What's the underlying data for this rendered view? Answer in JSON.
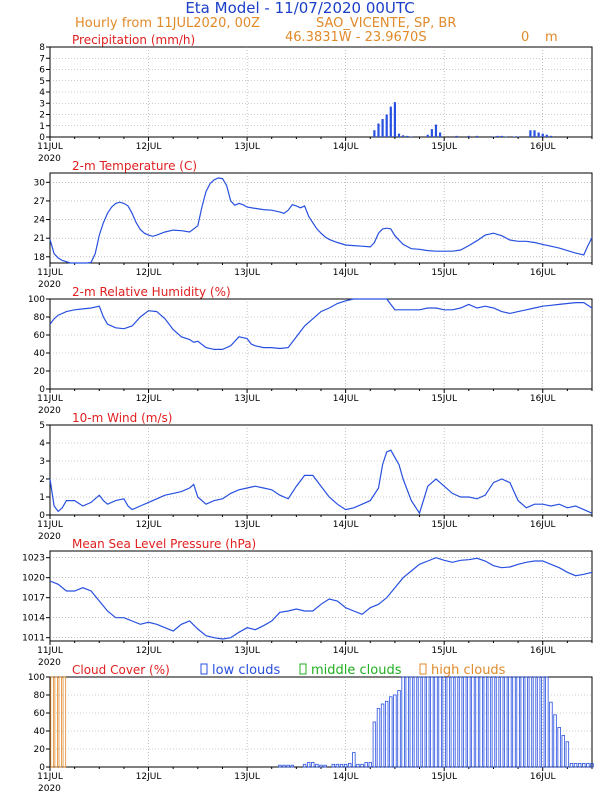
{
  "header": {
    "title": "Eta Model - 11/07/2020 00UTC",
    "subtitle": "Hourly from 11JUL2020, 00Z",
    "location": "SAO_VICENTE, SP, BR",
    "coords": "46.3831W - 23.9670S",
    "elevation": "0",
    "elevation_unit": "m"
  },
  "colors": {
    "title": "#1a3ec8",
    "subtitle": "#e08a2a",
    "panel_title": "#e02020",
    "series": "#2850e0",
    "low": "#2850e0",
    "middle": "#20b020",
    "high": "#e08a2a",
    "grid": "#999999"
  },
  "x_axis": {
    "labels": [
      "11JUL",
      "12JUL",
      "13JUL",
      "14JUL",
      "15JUL",
      "16JUL"
    ],
    "year": "2020",
    "hours": 132
  },
  "chart_data": [
    {
      "type": "bar",
      "id": "precip",
      "title": "Precipitation (mm/h)",
      "ylim": [
        0,
        8
      ],
      "yticks": [
        "0",
        "1",
        "2",
        "3",
        "4",
        "5",
        "6",
        "7",
        "8"
      ],
      "hours": [
        79,
        80,
        81,
        82,
        83,
        84,
        85,
        86,
        87,
        88,
        92,
        93,
        94,
        95,
        99,
        102,
        104,
        108,
        109,
        110,
        111,
        113,
        114,
        117,
        118,
        119,
        120,
        121,
        122
      ],
      "values": [
        0.6,
        1.2,
        1.6,
        2.0,
        2.7,
        3.1,
        0.3,
        0.15,
        0.1,
        0.05,
        0.2,
        0.7,
        1.1,
        0.4,
        0.1,
        0.1,
        0.1,
        0.05,
        0.1,
        0.1,
        0.05,
        0.05,
        0.05,
        0.6,
        0.6,
        0.4,
        0.3,
        0.2,
        0.1
      ]
    },
    {
      "type": "line",
      "id": "temp",
      "title": "2-m Temperature (C)",
      "ylim": [
        17,
        31.5
      ],
      "yticks": [
        "18",
        "21",
        "24",
        "27",
        "30"
      ],
      "x": [
        0,
        1,
        2,
        3,
        5,
        7,
        9,
        10,
        11,
        12,
        13,
        14,
        15,
        16,
        17,
        18,
        19,
        20,
        21,
        22,
        23,
        24,
        25,
        26,
        28,
        30,
        32,
        34,
        36,
        37,
        38,
        39,
        40,
        41,
        42,
        43,
        44,
        45,
        46,
        47,
        48,
        50,
        52,
        54,
        56,
        57,
        58,
        59,
        60,
        61,
        62,
        63,
        64,
        65,
        66,
        67,
        68,
        70,
        72,
        74,
        76,
        78,
        79,
        80,
        81,
        82,
        83,
        84,
        86,
        88,
        90,
        92,
        94,
        96,
        98,
        100,
        102,
        104,
        106,
        108,
        110,
        112,
        114,
        116,
        118,
        120,
        122,
        124,
        126,
        128,
        130,
        131,
        132
      ],
      "y": [
        20.8,
        18.5,
        17.8,
        17.4,
        17.0,
        16.9,
        17.0,
        17.1,
        18.5,
        21.5,
        23.5,
        25.0,
        26.0,
        26.6,
        26.8,
        26.6,
        26.2,
        25.0,
        23.5,
        22.4,
        21.8,
        21.5,
        21.3,
        21.5,
        22.0,
        22.3,
        22.2,
        22.0,
        23.0,
        26.0,
        28.5,
        29.8,
        30.4,
        30.7,
        30.6,
        29.5,
        27.0,
        26.3,
        26.6,
        26.4,
        26.0,
        25.8,
        25.6,
        25.5,
        25.2,
        25.0,
        25.5,
        26.4,
        26.2,
        25.9,
        26.2,
        24.5,
        23.5,
        22.5,
        21.8,
        21.2,
        20.8,
        20.3,
        19.9,
        19.8,
        19.7,
        19.6,
        20.3,
        21.8,
        22.5,
        22.6,
        22.5,
        21.4,
        20.0,
        19.3,
        19.2,
        19.0,
        18.9,
        18.9,
        18.9,
        19.1,
        19.8,
        20.6,
        21.5,
        21.8,
        21.4,
        20.7,
        20.5,
        20.5,
        20.3,
        20.0,
        19.7,
        19.4,
        19.0,
        18.6,
        18.3,
        19.8,
        21.1
      ]
    },
    {
      "type": "line",
      "id": "rh",
      "title": "2-m Relative Humidity (%)",
      "ylim": [
        0,
        100
      ],
      "yticks": [
        "0",
        "20",
        "40",
        "60",
        "80",
        "100"
      ],
      "x": [
        0,
        1,
        2,
        4,
        6,
        8,
        10,
        12,
        13,
        14,
        16,
        18,
        20,
        22,
        24,
        26,
        28,
        30,
        32,
        34,
        35,
        36,
        38,
        40,
        42,
        44,
        46,
        48,
        49,
        50,
        52,
        54,
        56,
        58,
        60,
        62,
        64,
        66,
        68,
        70,
        72,
        74,
        76,
        78,
        80,
        82,
        84,
        86,
        88,
        90,
        92,
        94,
        96,
        98,
        100,
        102,
        104,
        106,
        108,
        110,
        112,
        114,
        116,
        118,
        120,
        122,
        124,
        126,
        128,
        130,
        132
      ],
      "y": [
        72,
        78,
        82,
        86,
        88,
        89,
        90,
        92,
        80,
        72,
        68,
        67,
        70,
        80,
        87,
        86,
        78,
        66,
        58,
        55,
        52,
        53,
        46,
        44,
        44,
        48,
        58,
        56,
        50,
        48,
        46,
        46,
        45,
        46,
        58,
        70,
        78,
        86,
        90,
        95,
        98,
        100,
        100,
        100,
        100,
        100,
        88,
        88,
        88,
        88,
        90,
        90,
        88,
        88,
        90,
        94,
        90,
        92,
        90,
        86,
        84,
        86,
        88,
        90,
        92,
        93,
        94,
        95,
        96,
        96,
        90
      ]
    },
    {
      "type": "line",
      "id": "wind",
      "title": "10-m Wind (m/s)",
      "ylim": [
        0,
        5
      ],
      "yticks": [
        "0",
        "1",
        "2",
        "3",
        "4",
        "5"
      ],
      "x": [
        0,
        1,
        2,
        3,
        4,
        6,
        8,
        10,
        12,
        13,
        14,
        16,
        18,
        19,
        20,
        22,
        24,
        26,
        28,
        30,
        32,
        34,
        35,
        36,
        38,
        40,
        42,
        44,
        46,
        48,
        50,
        52,
        54,
        56,
        58,
        60,
        62,
        64,
        66,
        68,
        70,
        72,
        74,
        76,
        78,
        80,
        81,
        82,
        83,
        84,
        85,
        86,
        88,
        90,
        92,
        94,
        96,
        98,
        100,
        102,
        104,
        106,
        108,
        110,
        112,
        114,
        116,
        118,
        120,
        122,
        124,
        126,
        128,
        130,
        132
      ],
      "y": [
        2.0,
        0.5,
        0.2,
        0.4,
        0.8,
        0.8,
        0.5,
        0.7,
        1.1,
        0.8,
        0.6,
        0.8,
        0.9,
        0.5,
        0.3,
        0.5,
        0.7,
        0.9,
        1.1,
        1.2,
        1.3,
        1.5,
        1.7,
        1.0,
        0.6,
        0.8,
        0.9,
        1.2,
        1.4,
        1.5,
        1.6,
        1.5,
        1.4,
        1.1,
        0.9,
        1.6,
        2.2,
        2.2,
        1.6,
        1.0,
        0.6,
        0.3,
        0.4,
        0.6,
        0.8,
        1.5,
        2.8,
        3.5,
        3.6,
        3.2,
        2.8,
        2.0,
        0.8,
        0.1,
        1.6,
        2.0,
        1.6,
        1.2,
        1.0,
        1.0,
        0.9,
        1.1,
        1.8,
        2.0,
        1.8,
        0.8,
        0.4,
        0.6,
        0.6,
        0.5,
        0.6,
        0.4,
        0.5,
        0.3,
        0.1
      ]
    },
    {
      "type": "line",
      "id": "pres",
      "title": "Mean Sea Level Pressure (hPa)",
      "ylim": [
        1010.5,
        1024
      ],
      "yticks": [
        "1011",
        "1014",
        "1017",
        "1020",
        "1023"
      ],
      "x": [
        0,
        2,
        4,
        6,
        8,
        10,
        12,
        14,
        16,
        18,
        20,
        22,
        24,
        26,
        28,
        30,
        32,
        34,
        36,
        38,
        40,
        42,
        44,
        46,
        48,
        50,
        52,
        54,
        56,
        58,
        60,
        62,
        64,
        66,
        68,
        70,
        72,
        74,
        76,
        78,
        80,
        82,
        84,
        86,
        88,
        90,
        92,
        94,
        96,
        98,
        100,
        102,
        104,
        106,
        108,
        110,
        112,
        114,
        116,
        118,
        120,
        122,
        124,
        126,
        128,
        130,
        132
      ],
      "y": [
        1019.5,
        1019.0,
        1018.0,
        1018.0,
        1018.5,
        1018.0,
        1016.5,
        1015.0,
        1014.0,
        1014.0,
        1013.5,
        1013.0,
        1013.3,
        1013.0,
        1012.5,
        1012.0,
        1013.0,
        1013.5,
        1012.3,
        1011.3,
        1011.0,
        1010.8,
        1011.0,
        1011.8,
        1012.5,
        1012.2,
        1012.8,
        1013.5,
        1014.8,
        1015.0,
        1015.3,
        1015.0,
        1015.0,
        1016.0,
        1016.8,
        1016.5,
        1015.5,
        1015.0,
        1014.5,
        1015.5,
        1016.0,
        1017.0,
        1018.5,
        1020.0,
        1021.0,
        1022.0,
        1022.5,
        1023.0,
        1022.6,
        1022.3,
        1022.6,
        1022.7,
        1022.9,
        1022.5,
        1021.8,
        1021.5,
        1021.6,
        1022.0,
        1022.3,
        1022.5,
        1022.5,
        1022.0,
        1021.5,
        1020.8,
        1020.3,
        1020.5,
        1020.8
      ]
    },
    {
      "type": "bar",
      "id": "cloud",
      "title": "Cloud Cover (%)",
      "legend": [
        "low clouds",
        "middle clouds",
        "high clouds"
      ],
      "ylim": [
        0,
        100
      ],
      "yticks": [
        "0",
        "20",
        "40",
        "60",
        "80",
        "100"
      ],
      "high_hours": [
        0,
        1,
        2,
        3
      ],
      "high_values": [
        100,
        100,
        100,
        100
      ],
      "low_hours": [
        56,
        57,
        58,
        59,
        62,
        63,
        64,
        65,
        66,
        67,
        69,
        70,
        71,
        72,
        73,
        74,
        75,
        76,
        77,
        78,
        79,
        80,
        81,
        82,
        83,
        84,
        85,
        86,
        87,
        88,
        89,
        90,
        91,
        92,
        93,
        94,
        95,
        96,
        97,
        98,
        99,
        100,
        101,
        102,
        103,
        104,
        105,
        106,
        107,
        108,
        109,
        110,
        111,
        112,
        113,
        114,
        115,
        116,
        117,
        118,
        119,
        120,
        121,
        122,
        123,
        124,
        125,
        126,
        127,
        128,
        129,
        130,
        131,
        132
      ],
      "low_values": [
        2,
        2,
        2,
        2,
        3,
        5,
        5,
        3,
        2,
        2,
        3,
        3,
        3,
        3,
        4,
        16,
        3,
        3,
        5,
        5,
        50,
        65,
        70,
        73,
        78,
        80,
        85,
        100,
        100,
        100,
        100,
        100,
        100,
        100,
        100,
        100,
        100,
        100,
        100,
        100,
        100,
        100,
        100,
        100,
        100,
        100,
        100,
        100,
        100,
        100,
        100,
        100,
        100,
        100,
        100,
        100,
        100,
        100,
        100,
        100,
        100,
        100,
        100,
        72,
        58,
        44,
        35,
        28,
        4,
        4,
        4,
        4,
        4,
        4
      ]
    }
  ]
}
